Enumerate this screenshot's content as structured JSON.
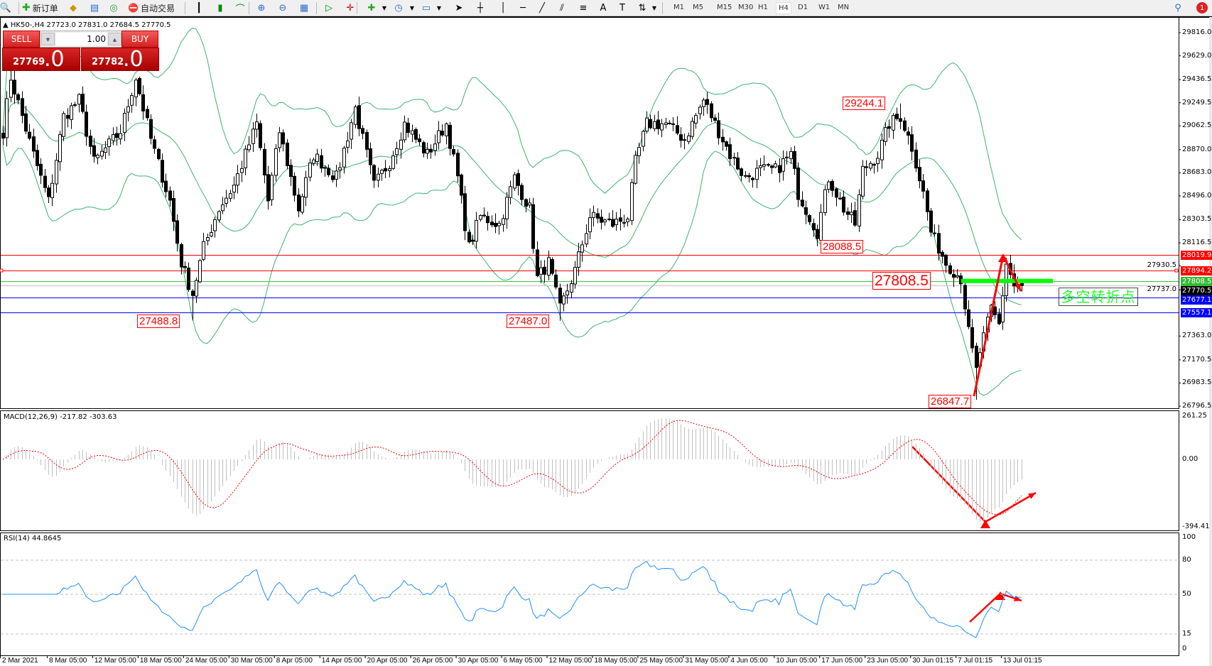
{
  "toolbar": {
    "new_order_label": "新订单",
    "auto_trading_label": "自动交易",
    "timeframes": [
      "M1",
      "M5",
      "M15",
      "M30",
      "H1",
      "H4",
      "D1",
      "W1",
      "MN"
    ],
    "active_timeframe": "H4",
    "notification_count": "1"
  },
  "chart": {
    "symbol_info": "HK50-,H4  27723.0 27831.0 27684.5 27770.5",
    "one_click": {
      "sell_label": "SELL",
      "buy_label": "BUY",
      "lots": "1.00",
      "sell_price_main": "27769",
      "sell_price_big": ".0",
      "buy_price_main": "27782",
      "buy_price_big": ".0"
    },
    "price_ticks": [
      "29816.0",
      "29629.0",
      "29436.5",
      "29249.5",
      "29062.5",
      "28870.0",
      "28683.0",
      "28496.0",
      "28303.5",
      "28116.5",
      "27930.5",
      "27737.0",
      "27363.0",
      "27170.5",
      "26983.5",
      "26796.5"
    ],
    "horizontal_lines": [
      {
        "price": "28019.9",
        "color": "#ff0000"
      },
      {
        "price": "27894.2",
        "color": "#ff0000"
      },
      {
        "price": "27808.5",
        "color": "#33cc33"
      },
      {
        "price": "27770.5",
        "color": "#000000"
      },
      {
        "price": "27677.1",
        "color": "#0000ff"
      },
      {
        "price": "27557.1",
        "color": "#0000ff"
      }
    ],
    "price_labels": [
      "29244.1",
      "28088.5",
      "27488.8",
      "27487.0",
      "26847.7",
      "27808.5"
    ],
    "annotation_text": "多空转折点",
    "time_labels": [
      "2 Mar 2021",
      "8 Mar 05:00",
      "12 Mar 05:00",
      "18 Mar 05:00",
      "24 Mar 05:00",
      "30 Mar 05:00",
      "8 Apr 05:00",
      "14 Apr 05:00",
      "20 Apr 05:00",
      "26 Apr 05:00",
      "30 Apr 05:00",
      "6 May 05:00",
      "12 May 05:00",
      "18 May 05:00",
      "25 May 05:00",
      "31 May 05:00",
      "4 Jun 05:00",
      "10 Jun 05:00",
      "17 Jun 05:00",
      "23 Jun 05:00",
      "30 Jun 01:15",
      "7 Jul 01:15",
      "13 Jul 01:15"
    ]
  },
  "macd": {
    "label": "MACD(12,26,9) -217.82 -303.63",
    "ticks": [
      "261.25",
      "0.00",
      "-394.41"
    ]
  },
  "rsi": {
    "label": "RSI(14) 44.8645",
    "ticks": [
      "100",
      "80",
      "50",
      "15",
      "0"
    ]
  },
  "colors": {
    "bands": "#3cb371",
    "signal": "#ff0000",
    "histogram": "#c0c0c0",
    "rsi": "#1e90ff",
    "arrow": "#ff0000"
  },
  "chart_data": {
    "type": "candlestick",
    "price_range": [
      26796.5,
      29816.0
    ],
    "price_path": [
      [
        0,
        29018
      ],
      [
        2,
        29455
      ],
      [
        8,
        28830
      ],
      [
        12,
        28455
      ],
      [
        16,
        29140
      ],
      [
        20,
        29270
      ],
      [
        24,
        28770
      ],
      [
        31,
        29018
      ],
      [
        35,
        29455
      ],
      [
        39,
        28955
      ],
      [
        44,
        28455
      ],
      [
        47,
        27955
      ],
      [
        50,
        27705
      ],
      [
        53,
        28080
      ],
      [
        57,
        28393
      ],
      [
        61,
        28580
      ],
      [
        67,
        29080
      ],
      [
        70,
        28455
      ],
      [
        73,
        29018
      ],
      [
        78,
        28393
      ],
      [
        82,
        28830
      ],
      [
        88,
        28643
      ],
      [
        93,
        29205
      ],
      [
        98,
        28580
      ],
      [
        102,
        28770
      ],
      [
        106,
        29080
      ],
      [
        112,
        28830
      ],
      [
        117,
        29080
      ],
      [
        120,
        28643
      ],
      [
        123,
        28080
      ],
      [
        126,
        28330
      ],
      [
        131,
        28268
      ],
      [
        135,
        28643
      ],
      [
        139,
        28393
      ],
      [
        141,
        27830
      ],
      [
        144,
        27955
      ],
      [
        147,
        27580
      ],
      [
        151,
        27893
      ],
      [
        155,
        28330
      ],
      [
        161,
        28268
      ],
      [
        165,
        28330
      ],
      [
        167,
        28770
      ],
      [
        170,
        29080
      ],
      [
        175,
        29080
      ],
      [
        180,
        28955
      ],
      [
        185,
        29270
      ],
      [
        188,
        29080
      ],
      [
        192,
        28830
      ],
      [
        196,
        28643
      ],
      [
        200,
        28705
      ],
      [
        204,
        28705
      ],
      [
        208,
        28830
      ],
      [
        210,
        28518
      ],
      [
        215,
        28205
      ],
      [
        218,
        28643
      ],
      [
        222,
        28393
      ],
      [
        225,
        28268
      ],
      [
        227,
        28705
      ],
      [
        231,
        28830
      ],
      [
        234,
        29080
      ],
      [
        237,
        29140
      ],
      [
        240,
        28893
      ],
      [
        243,
        28518
      ],
      [
        245,
        28205
      ],
      [
        249,
        27955
      ],
      [
        253,
        27830
      ],
      [
        255,
        27393
      ],
      [
        257,
        27080
      ],
      [
        258,
        27236
      ],
      [
        261,
        27580
      ],
      [
        263,
        27455
      ],
      [
        265,
        27955
      ],
      [
        267,
        27768
      ],
      [
        269,
        27770.5
      ]
    ]
  }
}
